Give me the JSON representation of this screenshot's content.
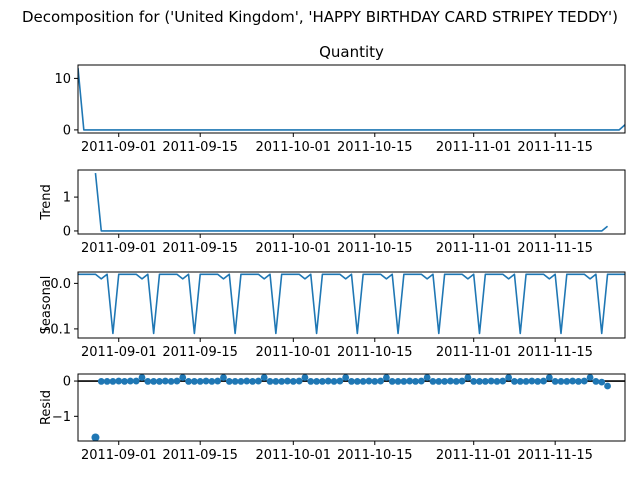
{
  "figure": {
    "suptitle": "Decomposition for ('United Kingdom', 'HAPPY BIRTHDAY CARD STRIPEY TEDDY')",
    "series_color": "#1f77b4"
  },
  "chart_data": [
    {
      "type": "line",
      "panel": "observed",
      "title": "Quantity",
      "ylabel": "",
      "x_range": [
        "2011-08-25",
        "2011-11-27"
      ],
      "x_ticks": [
        "2011-09-01",
        "2011-09-15",
        "2011-10-01",
        "2011-10-15",
        "2011-11-01",
        "2011-11-15"
      ],
      "x_tick_labels": [
        "2011-09-01",
        "2011-09-15",
        "2011-10-01",
        "2011-10-15",
        "2011-11-01",
        "2011-11-15"
      ],
      "y_ticks": [
        0,
        10
      ],
      "ylim": [
        -0.6,
        12.6
      ],
      "points": [
        [
          "2011-08-25",
          12
        ],
        [
          "2011-08-26",
          0
        ],
        [
          "2011-11-26",
          0
        ],
        [
          "2011-11-27",
          1
        ]
      ]
    },
    {
      "type": "line",
      "panel": "trend",
      "title": "",
      "ylabel": "Trend",
      "x_range": [
        "2011-08-25",
        "2011-11-27"
      ],
      "x_ticks": [
        "2011-09-01",
        "2011-09-15",
        "2011-10-01",
        "2011-10-15",
        "2011-11-01",
        "2011-11-15"
      ],
      "x_tick_labels": [
        "2011-09-01",
        "2011-09-15",
        "2011-10-01",
        "2011-10-15",
        "2011-11-01",
        "2011-11-15"
      ],
      "y_ticks": [
        0,
        1
      ],
      "ylim": [
        -0.09,
        1.8
      ],
      "points": [
        [
          "2011-08-28",
          1.71
        ],
        [
          "2011-08-29",
          0
        ],
        [
          "2011-11-23",
          0
        ],
        [
          "2011-11-24",
          0.14
        ]
      ]
    },
    {
      "type": "line",
      "panel": "seasonal",
      "title": "",
      "ylabel": "Seasonal",
      "x_range": [
        "2011-08-25",
        "2011-11-27"
      ],
      "x_ticks": [
        "2011-09-01",
        "2011-09-15",
        "2011-10-01",
        "2011-10-15",
        "2011-11-01",
        "2011-11-15"
      ],
      "x_tick_labels": [
        "2011-09-01",
        "2011-09-15",
        "2011-10-01",
        "2011-10-15",
        "2011-11-01",
        "2011-11-15"
      ],
      "y_ticks": [
        -0.1,
        0.0
      ],
      "y_tick_labels": [
        "−0.1",
        "0.0"
      ],
      "ylim": [
        -0.12,
        0.025
      ],
      "start_date": "2011-08-25",
      "period": 7,
      "cycle_values": [
        0.02,
        0.02,
        0.02,
        0.02,
        0.01,
        0.02,
        -0.11
      ]
    },
    {
      "type": "scatter",
      "panel": "resid",
      "title": "",
      "ylabel": "Resid",
      "x_range": [
        "2011-08-25",
        "2011-11-27"
      ],
      "x_ticks": [
        "2011-09-01",
        "2011-09-15",
        "2011-10-01",
        "2011-10-15",
        "2011-11-01",
        "2011-11-15"
      ],
      "x_tick_labels": [
        "2011-09-01",
        "2011-09-15",
        "2011-10-01",
        "2011-10-15",
        "2011-11-01",
        "2011-11-15"
      ],
      "y_ticks": [
        -1,
        0
      ],
      "y_tick_labels": [
        "−1",
        "0"
      ],
      "ylim": [
        -1.7,
        0.2
      ],
      "baseline": 0,
      "points": [
        [
          "2011-08-28",
          -1.6
        ],
        [
          "2011-08-29",
          -0.01
        ],
        [
          "2011-08-30",
          -0.01
        ],
        [
          "2011-08-31",
          -0.01
        ],
        [
          "2011-09-01",
          0.0
        ],
        [
          "2011-09-02",
          -0.01
        ],
        [
          "2011-09-03",
          0.0
        ],
        [
          "2011-09-04",
          0.0
        ],
        [
          "2011-09-05",
          0.1
        ],
        [
          "2011-09-06",
          -0.01
        ],
        [
          "2011-09-07",
          -0.01
        ],
        [
          "2011-09-08",
          -0.01
        ],
        [
          "2011-09-09",
          0.0
        ],
        [
          "2011-09-10",
          -0.01
        ],
        [
          "2011-09-11",
          0.0
        ],
        [
          "2011-09-12",
          0.1
        ],
        [
          "2011-09-13",
          -0.01
        ],
        [
          "2011-09-14",
          -0.01
        ],
        [
          "2011-09-15",
          -0.01
        ],
        [
          "2011-09-16",
          0.0
        ],
        [
          "2011-09-17",
          -0.01
        ],
        [
          "2011-09-18",
          0.0
        ],
        [
          "2011-09-19",
          0.1
        ],
        [
          "2011-09-20",
          -0.01
        ],
        [
          "2011-09-21",
          -0.01
        ],
        [
          "2011-09-22",
          -0.01
        ],
        [
          "2011-09-23",
          0.0
        ],
        [
          "2011-09-24",
          -0.01
        ],
        [
          "2011-09-25",
          0.0
        ],
        [
          "2011-09-26",
          0.1
        ],
        [
          "2011-09-27",
          -0.01
        ],
        [
          "2011-09-28",
          -0.01
        ],
        [
          "2011-09-29",
          -0.01
        ],
        [
          "2011-09-30",
          0.0
        ],
        [
          "2011-10-01",
          -0.01
        ],
        [
          "2011-10-02",
          0.0
        ],
        [
          "2011-10-03",
          0.1
        ],
        [
          "2011-10-04",
          -0.01
        ],
        [
          "2011-10-05",
          -0.01
        ],
        [
          "2011-10-06",
          -0.01
        ],
        [
          "2011-10-07",
          0.0
        ],
        [
          "2011-10-08",
          -0.01
        ],
        [
          "2011-10-09",
          0.0
        ],
        [
          "2011-10-10",
          0.1
        ],
        [
          "2011-10-11",
          -0.01
        ],
        [
          "2011-10-12",
          -0.01
        ],
        [
          "2011-10-13",
          -0.01
        ],
        [
          "2011-10-14",
          0.0
        ],
        [
          "2011-10-15",
          -0.01
        ],
        [
          "2011-10-16",
          0.0
        ],
        [
          "2011-10-17",
          0.1
        ],
        [
          "2011-10-18",
          -0.01
        ],
        [
          "2011-10-19",
          -0.01
        ],
        [
          "2011-10-20",
          -0.01
        ],
        [
          "2011-10-21",
          0.0
        ],
        [
          "2011-10-22",
          -0.01
        ],
        [
          "2011-10-23",
          0.0
        ],
        [
          "2011-10-24",
          0.1
        ],
        [
          "2011-10-25",
          -0.01
        ],
        [
          "2011-10-26",
          -0.01
        ],
        [
          "2011-10-27",
          -0.01
        ],
        [
          "2011-10-28",
          0.0
        ],
        [
          "2011-10-29",
          -0.01
        ],
        [
          "2011-10-30",
          0.0
        ],
        [
          "2011-10-31",
          0.1
        ],
        [
          "2011-11-01",
          -0.01
        ],
        [
          "2011-11-02",
          -0.01
        ],
        [
          "2011-11-03",
          -0.01
        ],
        [
          "2011-11-04",
          0.0
        ],
        [
          "2011-11-05",
          -0.01
        ],
        [
          "2011-11-06",
          0.0
        ],
        [
          "2011-11-07",
          0.1
        ],
        [
          "2011-11-08",
          -0.01
        ],
        [
          "2011-11-09",
          -0.01
        ],
        [
          "2011-11-10",
          -0.01
        ],
        [
          "2011-11-11",
          0.0
        ],
        [
          "2011-11-12",
          -0.01
        ],
        [
          "2011-11-13",
          0.0
        ],
        [
          "2011-11-14",
          0.1
        ],
        [
          "2011-11-15",
          -0.01
        ],
        [
          "2011-11-16",
          -0.01
        ],
        [
          "2011-11-17",
          -0.01
        ],
        [
          "2011-11-18",
          0.0
        ],
        [
          "2011-11-19",
          -0.01
        ],
        [
          "2011-11-20",
          0.0
        ],
        [
          "2011-11-21",
          0.1
        ],
        [
          "2011-11-22",
          -0.01
        ],
        [
          "2011-11-23",
          -0.03
        ],
        [
          "2011-11-24",
          -0.14
        ]
      ]
    }
  ]
}
